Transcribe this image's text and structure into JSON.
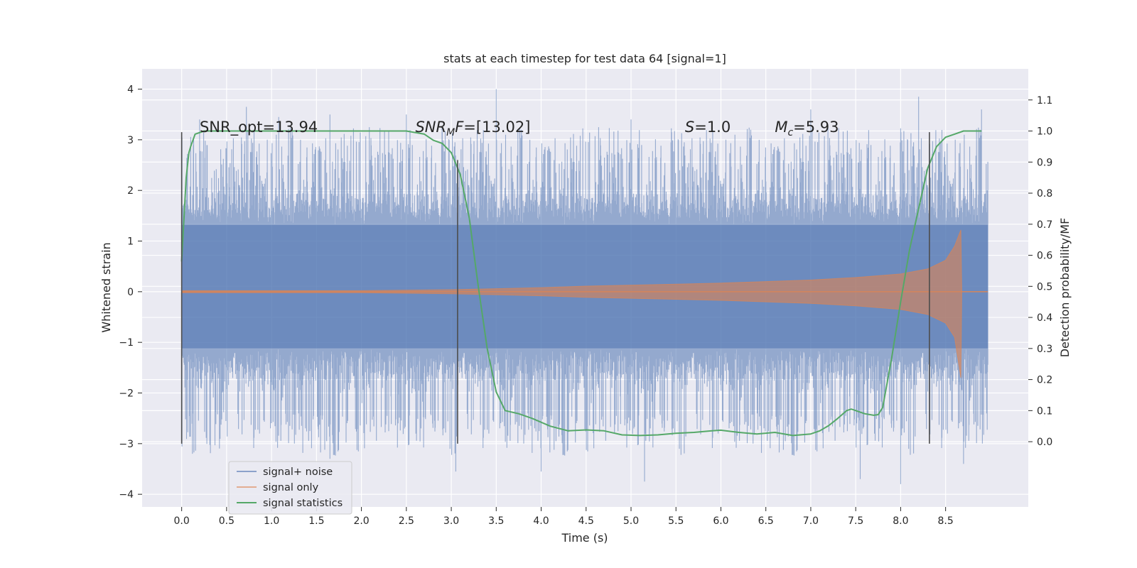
{
  "chart_data": {
    "type": "line",
    "title": "stats at each timestep for test data 64 [signal=1]",
    "xlabel": "Time (s)",
    "ylabel": "Whitened strain",
    "y2label": "Detection probability/MF",
    "xlim": [
      -0.44,
      9.42
    ],
    "ylim": [
      -4.25,
      4.4
    ],
    "y2lim": [
      -0.21,
      1.2
    ],
    "xticks": [
      "0.0",
      "0.5",
      "1.0",
      "1.5",
      "2.0",
      "2.5",
      "3.0",
      "3.5",
      "4.0",
      "4.5",
      "5.0",
      "5.5",
      "6.0",
      "6.5",
      "7.0",
      "7.5",
      "8.0",
      "8.5"
    ],
    "yticks": [
      "−4",
      "−3",
      "−2",
      "−1",
      "0",
      "1",
      "2",
      "3",
      "4"
    ],
    "y2ticks": [
      "0.0",
      "0.1",
      "0.2",
      "0.3",
      "0.4",
      "0.5",
      "0.6",
      "0.7",
      "0.8",
      "0.9",
      "1.0",
      "1.1"
    ],
    "grid": true,
    "legend_position": "lower-left",
    "series": [
      {
        "name": "signal+ noise",
        "axis": "left",
        "color": "#4c72b0",
        "t_range": [
          0.0,
          8.97
        ],
        "core_band": [
          -1.12,
          1.32
        ],
        "peaks_upper": [
          [
            0.2,
            3.4
          ],
          [
            0.72,
            3.65
          ],
          [
            1.08,
            3.45
          ],
          [
            1.65,
            3.5
          ],
          [
            2.5,
            3.5
          ],
          [
            3.5,
            4.0
          ],
          [
            5.0,
            3.4
          ],
          [
            7.0,
            3.6
          ],
          [
            8.2,
            3.85
          ],
          [
            8.9,
            3.6
          ]
        ],
        "peaks_lower": [
          [
            0.12,
            -3.2
          ],
          [
            1.65,
            -3.3
          ],
          [
            3.05,
            -3.55
          ],
          [
            4.0,
            -3.55
          ],
          [
            5.15,
            -3.75
          ],
          [
            7.55,
            -3.7
          ],
          [
            8.0,
            -3.8
          ],
          [
            8.7,
            -3.4
          ]
        ],
        "envelope_upper": 2.35,
        "envelope_lower": -2.35
      },
      {
        "name": "signal only",
        "axis": "left",
        "color": "#dd8452",
        "t": [
          0.0,
          2.0,
          3.0,
          3.5,
          4.0,
          4.5,
          5.0,
          5.5,
          6.0,
          6.5,
          7.0,
          7.5,
          8.0,
          8.3,
          8.5,
          8.6,
          8.67,
          8.68,
          8.97
        ],
        "amplitude": [
          0.02,
          0.02,
          0.04,
          0.06,
          0.08,
          0.11,
          0.13,
          0.15,
          0.17,
          0.2,
          0.23,
          0.28,
          0.35,
          0.45,
          0.62,
          0.9,
          1.22,
          0.0,
          0.0
        ],
        "lower_amplitude": [
          0.02,
          0.02,
          0.04,
          0.06,
          0.08,
          0.11,
          0.13,
          0.15,
          0.17,
          0.2,
          0.23,
          0.28,
          0.35,
          0.45,
          0.62,
          0.9,
          1.7,
          0.0,
          0.0
        ]
      },
      {
        "name": "signal statistics",
        "axis": "right",
        "color": "#55a868",
        "x": [
          0.0,
          0.05,
          0.08,
          0.1,
          0.15,
          0.25,
          0.5,
          1.0,
          1.5,
          2.0,
          2.5,
          2.7,
          2.8,
          2.9,
          3.0,
          3.1,
          3.2,
          3.3,
          3.4,
          3.5,
          3.6,
          3.75,
          3.9,
          4.1,
          4.3,
          4.5,
          4.7,
          4.9,
          5.1,
          5.3,
          5.5,
          5.7,
          5.9,
          6.0,
          6.2,
          6.4,
          6.6,
          6.8,
          7.0,
          7.1,
          7.2,
          7.3,
          7.4,
          7.45,
          7.5,
          7.6,
          7.7,
          7.75,
          7.8,
          7.9,
          8.0,
          8.1,
          8.2,
          8.3,
          8.4,
          8.5,
          8.6,
          8.7,
          8.8,
          8.9
        ],
        "y": [
          0.58,
          0.85,
          0.93,
          0.95,
          0.99,
          1.0,
          1.0,
          1.0,
          1.0,
          1.0,
          1.0,
          0.99,
          0.97,
          0.96,
          0.93,
          0.86,
          0.72,
          0.5,
          0.3,
          0.16,
          0.1,
          0.09,
          0.075,
          0.05,
          0.035,
          0.038,
          0.035,
          0.022,
          0.02,
          0.022,
          0.027,
          0.03,
          0.035,
          0.037,
          0.03,
          0.025,
          0.03,
          0.02,
          0.025,
          0.035,
          0.052,
          0.075,
          0.1,
          0.105,
          0.1,
          0.09,
          0.085,
          0.087,
          0.11,
          0.27,
          0.45,
          0.62,
          0.75,
          0.88,
          0.95,
          0.98,
          0.99,
          1.0,
          1.0,
          1.0
        ]
      }
    ],
    "vertical_markers": [
      {
        "x": 0.0,
        "y": [
          -3.0,
          3.15
        ]
      },
      {
        "x": 3.07,
        "y": [
          -3.0,
          2.6
        ]
      },
      {
        "x": 8.32,
        "y": [
          -3.0,
          3.15
        ]
      }
    ],
    "annotations": [
      {
        "x": 0.2,
        "y": 3.15,
        "parts": [
          {
            "text": "SNR_opt=13.94",
            "style": "normal",
            "sub": false
          }
        ]
      },
      {
        "x": 2.6,
        "y": 3.15,
        "parts": [
          {
            "text": "SNR",
            "style": "italic",
            "sub": false
          },
          {
            "text": "M",
            "style": "italic",
            "sub": true
          },
          {
            "text": "F",
            "style": "italic",
            "sub": false
          },
          {
            "text": "=[13.02]",
            "style": "normal",
            "sub": false
          }
        ]
      },
      {
        "x": 5.6,
        "y": 3.15,
        "parts": [
          {
            "text": "S",
            "style": "italic",
            "sub": false
          },
          {
            "text": "=1.0",
            "style": "normal",
            "sub": false
          }
        ]
      },
      {
        "x": 6.6,
        "y": 3.15,
        "parts": [
          {
            "text": "M",
            "style": "italic",
            "sub": false
          },
          {
            "text": "c",
            "style": "italic",
            "sub": true
          },
          {
            "text": "=5.93",
            "style": "normal",
            "sub": false
          }
        ]
      }
    ],
    "colors": {
      "plot_background": "#eaeaf2",
      "grid": "#ffffff",
      "marker_line": "#4d4d4d"
    }
  }
}
